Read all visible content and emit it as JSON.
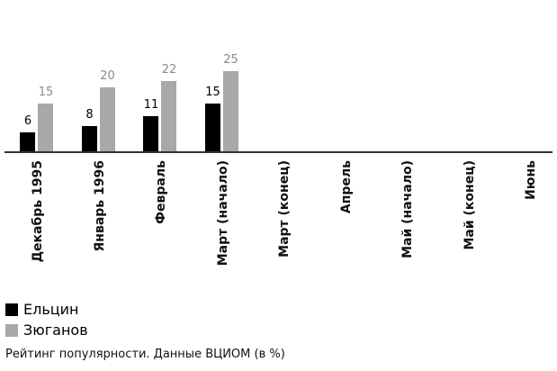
{
  "chart_data": {
    "type": "bar",
    "title": "",
    "categories": [
      "Декабрь 1995",
      "Январь 1996",
      "Февраль",
      "Март (начало)",
      "Март (конец)",
      "Апрель",
      "Май (начало)",
      "Май (конец)",
      "Июнь"
    ],
    "series": [
      {
        "name": "Ельцин",
        "color": "#000000",
        "values": [
          6,
          8,
          11,
          15,
          null,
          null,
          null,
          null,
          null
        ]
      },
      {
        "name": "Зюганов",
        "color": "#a8a8a8",
        "values": [
          15,
          20,
          22,
          25,
          null,
          null,
          null,
          null,
          null
        ]
      }
    ],
    "xlabel": "",
    "ylabel": "",
    "grid": false,
    "legend_position": "bottom-left"
  },
  "legend": [
    {
      "label": "Ельцин",
      "color": "#000000"
    },
    {
      "label": "Зюганов",
      "color": "#a8a8a8"
    }
  ],
  "caption": "Рейтинг популярности. Данные ВЦИОМ (в %)"
}
